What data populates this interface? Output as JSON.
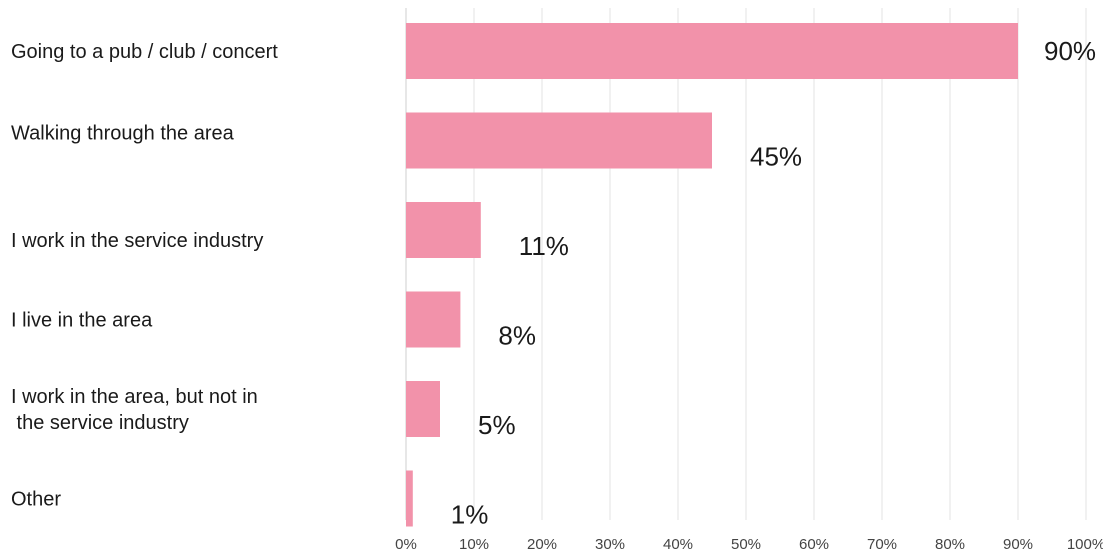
{
  "chart_data": {
    "type": "bar",
    "orientation": "horizontal",
    "title": "",
    "xlabel": "",
    "ylabel": "",
    "categories": [
      [
        "Going to a pub / club / concert"
      ],
      [
        "Walking through the area"
      ],
      [
        "I work in the service industry"
      ],
      [
        "I live in the area"
      ],
      [
        "I work in the area, but not in",
        " the service industry"
      ],
      [
        "Other"
      ]
    ],
    "values": [
      90,
      45,
      11,
      8,
      5,
      1
    ],
    "value_labels": [
      "90%",
      "45%",
      "11%",
      "8%",
      "5%",
      "1%"
    ],
    "xlim": [
      0,
      100
    ],
    "xticks": [
      0,
      10,
      20,
      30,
      40,
      50,
      60,
      70,
      80,
      90,
      100
    ],
    "xtick_labels": [
      "0%",
      "10%",
      "20%",
      "30%",
      "40%",
      "50%",
      "60%",
      "70%",
      "80%",
      "90%",
      "100%"
    ],
    "grid": true,
    "legend": "none",
    "bar_color": "#f292aa"
  }
}
